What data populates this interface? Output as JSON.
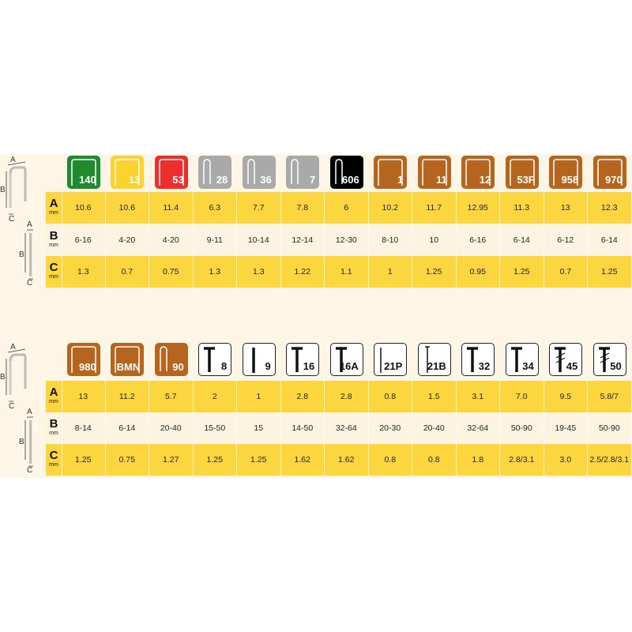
{
  "colors": {
    "green": "#1f8a2e",
    "yellow": "#fcd22e",
    "red": "#ef2d2d",
    "grey": "#a9a9a9",
    "black": "#000000",
    "brown": "#b5651d",
    "row_yellow": "#fcd63f",
    "row_cream": "#fdf3e1"
  },
  "diagram_labels": {
    "a": "A",
    "b": "B",
    "c": "C"
  },
  "row_labels": [
    {
      "letter": "A",
      "unit": "mm"
    },
    {
      "letter": "B",
      "unit": "mm"
    },
    {
      "letter": "C",
      "unit": "mm"
    }
  ],
  "tables": [
    {
      "items": [
        {
          "code": "140",
          "color": "green",
          "shape": "staple",
          "a": "10.6",
          "b": "6-16",
          "c": "1.3"
        },
        {
          "code": "13",
          "color": "yellow",
          "shape": "staple",
          "a": "10.6",
          "b": "4-20",
          "c": "0.7"
        },
        {
          "code": "53",
          "color": "red",
          "shape": "staple",
          "a": "11.4",
          "b": "4-20",
          "c": "0.75"
        },
        {
          "code": "28",
          "color": "grey",
          "shape": "narrow",
          "a": "6.3",
          "b": "9-11",
          "c": "1.3"
        },
        {
          "code": "36",
          "color": "grey",
          "shape": "narrow",
          "a": "7.7",
          "b": "10-14",
          "c": "1.3"
        },
        {
          "code": "7",
          "color": "grey",
          "shape": "narrow",
          "a": "7.8",
          "b": "12-14",
          "c": "1.22"
        },
        {
          "code": "606",
          "color": "black",
          "shape": "narrow",
          "a": "6",
          "b": "12-30",
          "c": "1.1"
        },
        {
          "code": "1",
          "color": "brown",
          "shape": "staple",
          "a": "10.2",
          "b": "8-10",
          "c": "1"
        },
        {
          "code": "11",
          "color": "brown",
          "shape": "staple",
          "a": "11.7",
          "b": "10",
          "c": "1.25"
        },
        {
          "code": "12",
          "color": "brown",
          "shape": "staple",
          "a": "12.95",
          "b": "6-16",
          "c": "0.95"
        },
        {
          "code": "53F",
          "color": "brown",
          "shape": "staple",
          "a": "11.3",
          "b": "6-14",
          "c": "1.25"
        },
        {
          "code": "958",
          "color": "brown",
          "shape": "staple",
          "a": "13",
          "b": "6-12",
          "c": "0.7"
        },
        {
          "code": "970",
          "color": "brown",
          "shape": "staple",
          "a": "12.3",
          "b": "6-14",
          "c": "1.25"
        }
      ]
    },
    {
      "items": [
        {
          "code": "980",
          "color": "brown",
          "shape": "staple",
          "a": "13",
          "b": "8-14",
          "c": "1.25"
        },
        {
          "code": "BMN",
          "color": "brown",
          "shape": "staple",
          "a": "11.2",
          "b": "6-14",
          "c": "0.75"
        },
        {
          "code": "90",
          "color": "brown",
          "shape": "narrow",
          "a": "5.7",
          "b": "20-40",
          "c": "1.27"
        },
        {
          "code": "8",
          "color": "white",
          "shape": "nail",
          "a": "2",
          "b": "15-50",
          "c": "1.25"
        },
        {
          "code": "9",
          "color": "white",
          "shape": "pin",
          "a": "1",
          "b": "15",
          "c": "1.25"
        },
        {
          "code": "16",
          "color": "white",
          "shape": "nail",
          "a": "2.8",
          "b": "14-50",
          "c": "1.62"
        },
        {
          "code": "16A",
          "color": "white",
          "shape": "nail",
          "a": "2.8",
          "b": "32-64",
          "c": "1.62"
        },
        {
          "code": "21P",
          "color": "white",
          "shape": "brad",
          "a": "0.8",
          "b": "20-30",
          "c": "0.8"
        },
        {
          "code": "21B",
          "color": "white",
          "shape": "brad-head",
          "a": "1.5",
          "b": "20-40",
          "c": "0.8"
        },
        {
          "code": "32",
          "color": "white",
          "shape": "nail",
          "a": "3.1",
          "b": "32-64",
          "c": "1.8"
        },
        {
          "code": "34",
          "color": "white",
          "shape": "nail",
          "a": "7.0",
          "b": "50-90",
          "c": "2.8/3.1"
        },
        {
          "code": "45",
          "color": "white",
          "shape": "barbed",
          "a": "9.5",
          "b": "19-45",
          "c": "3.0"
        },
        {
          "code": "50",
          "color": "white",
          "shape": "barbed",
          "a": "5.8/7",
          "b": "50-90",
          "c": "2.5/2.8/3.1"
        }
      ]
    }
  ]
}
